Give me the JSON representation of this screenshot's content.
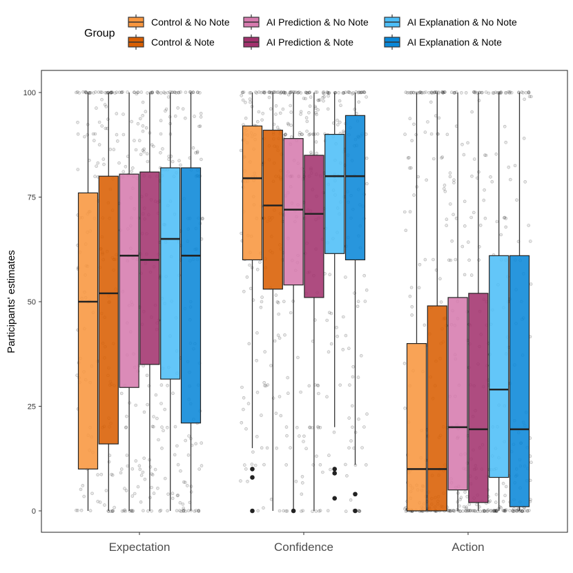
{
  "chart_data": {
    "type": "boxplot",
    "title": "",
    "xlabel": "",
    "ylabel": "Participants' estimates",
    "ylim": [
      -5,
      105
    ],
    "yticks": [
      0,
      25,
      50,
      75,
      100
    ],
    "grid": false,
    "legend": {
      "title": "Group",
      "position": "top",
      "columns": [
        [
          "Control & No Note",
          "Control & Note"
        ],
        [
          "AI Prediction & No Note",
          "AI Prediction & Note"
        ],
        [
          "AI Explanation & No Note",
          "AI Explanation & Note"
        ]
      ]
    },
    "categories": [
      "Expectation",
      "Confidence",
      "Action"
    ],
    "series": [
      {
        "name": "Control & No Note",
        "color": "#F8963F",
        "boxes": [
          {
            "min": 0,
            "q1": 10,
            "median": 50,
            "q3": 76,
            "max": 100,
            "outliers": []
          },
          {
            "min": 15,
            "q1": 60,
            "median": 79.5,
            "q3": 92,
            "max": 100,
            "outliers": [
              0,
              8,
              10
            ]
          },
          {
            "min": 0,
            "q1": 0,
            "median": 10,
            "q3": 40,
            "max": 100,
            "outliers": []
          }
        ]
      },
      {
        "name": "Control & Note",
        "color": "#D95F02",
        "boxes": [
          {
            "min": 0,
            "q1": 16,
            "median": 52,
            "q3": 80,
            "max": 100,
            "outliers": []
          },
          {
            "min": 0,
            "q1": 53,
            "median": 73,
            "q3": 91,
            "max": 100,
            "outliers": []
          },
          {
            "min": 0,
            "q1": 0,
            "median": 10,
            "q3": 49,
            "max": 100,
            "outliers": []
          }
        ]
      },
      {
        "name": "AI Prediction & No Note",
        "color": "#D67BAE",
        "boxes": [
          {
            "min": 0,
            "q1": 29.5,
            "median": 61,
            "q3": 80.5,
            "max": 100,
            "outliers": []
          },
          {
            "min": 0,
            "q1": 54,
            "median": 72,
            "q3": 89,
            "max": 100,
            "outliers": [
              0
            ]
          },
          {
            "min": 0,
            "q1": 5,
            "median": 20,
            "q3": 51,
            "max": 100,
            "outliers": []
          }
        ]
      },
      {
        "name": "AI Prediction & Note",
        "color": "#A3336E",
        "boxes": [
          {
            "min": 0,
            "q1": 35,
            "median": 60,
            "q3": 81,
            "max": 100,
            "outliers": []
          },
          {
            "min": 0,
            "q1": 51,
            "median": 71,
            "q3": 85,
            "max": 100,
            "outliers": []
          },
          {
            "min": 0,
            "q1": 2,
            "median": 19.5,
            "q3": 52,
            "max": 100,
            "outliers": []
          }
        ]
      },
      {
        "name": "AI Explanation & No Note",
        "color": "#4DBEF7",
        "boxes": [
          {
            "min": 0,
            "q1": 31.5,
            "median": 65,
            "q3": 82,
            "max": 100,
            "outliers": []
          },
          {
            "min": 20,
            "q1": 61.5,
            "median": 80,
            "q3": 90,
            "max": 100,
            "outliers": [
              3,
              9,
              10
            ]
          },
          {
            "min": 0,
            "q1": 8,
            "median": 29,
            "q3": 61,
            "max": 100,
            "outliers": []
          }
        ]
      },
      {
        "name": "AI Explanation & Note",
        "color": "#0A88D8",
        "boxes": [
          {
            "min": 0,
            "q1": 21,
            "median": 61,
            "q3": 82,
            "max": 100,
            "outliers": []
          },
          {
            "min": 11,
            "q1": 60,
            "median": 80,
            "q3": 94.5,
            "max": 100,
            "outliers": [
              0,
              4
            ]
          },
          {
            "min": 0,
            "q1": 1,
            "median": 19.5,
            "q3": 61,
            "max": 100,
            "outliers": []
          }
        ]
      }
    ]
  }
}
